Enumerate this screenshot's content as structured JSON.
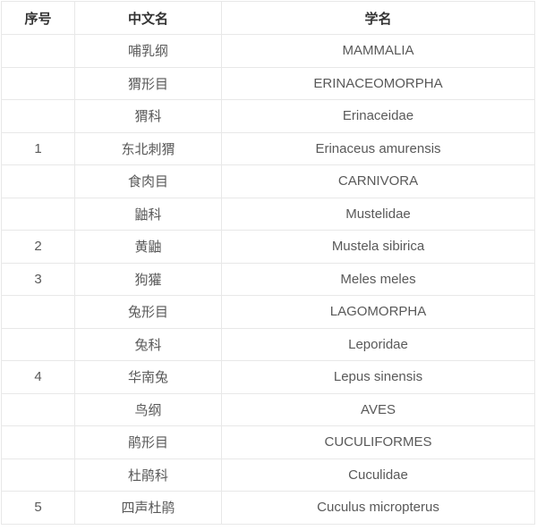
{
  "table": {
    "columns": [
      {
        "key": "no",
        "label": "序号"
      },
      {
        "key": "cn",
        "label": "中文名"
      },
      {
        "key": "sci",
        "label": "学名"
      }
    ],
    "rows": [
      {
        "no": "",
        "cn": "哺乳纲",
        "sci": "MAMMALIA"
      },
      {
        "no": "",
        "cn": "猬形目",
        "sci": "ERINACEOMORPHA"
      },
      {
        "no": "",
        "cn": "猬科",
        "sci": "Erinaceidae"
      },
      {
        "no": "1",
        "cn": "东北刺猬",
        "sci": "Erinaceus amurensis"
      },
      {
        "no": "",
        "cn": "食肉目",
        "sci": "CARNIVORA"
      },
      {
        "no": "",
        "cn": "鼬科",
        "sci": "Mustelidae"
      },
      {
        "no": "2",
        "cn": "黄鼬",
        "sci": "Mustela sibirica"
      },
      {
        "no": "3",
        "cn": "狗獾",
        "sci": "Meles meles"
      },
      {
        "no": "",
        "cn": "兔形目",
        "sci": "LAGOMORPHA"
      },
      {
        "no": "",
        "cn": "兔科",
        "sci": "Leporidae"
      },
      {
        "no": "4",
        "cn": "华南兔",
        "sci": "Lepus sinensis"
      },
      {
        "no": "",
        "cn": "鸟纲",
        "sci": "AVES"
      },
      {
        "no": "",
        "cn": "鹃形目",
        "sci": "CUCULIFORMES"
      },
      {
        "no": "",
        "cn": "杜鹃科",
        "sci": "Cuculidae"
      },
      {
        "no": "5",
        "cn": "四声杜鹃",
        "sci": "Cuculus micropterus"
      }
    ],
    "colors": {
      "border": "#e8e8e8",
      "body_text": "#595959",
      "header_text": "#333333",
      "background": "#ffffff"
    }
  }
}
